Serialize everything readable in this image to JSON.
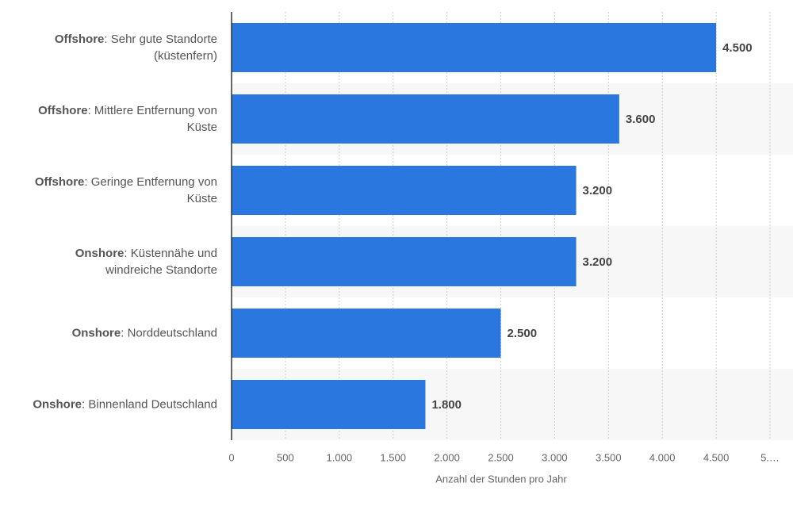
{
  "chart_data": {
    "type": "barh",
    "categories": [
      "Offshore: Sehr gute Standorte (küstenfern)",
      "Offshore: Mittlere Entfernung von Küste",
      "Offshore: Geringe Entfernung von Küste",
      "Onshore: Küstennähe und windreiche Standorte",
      "Onshore: Norddeutschland",
      "Onshore: Binnenland Deutschland"
    ],
    "values": [
      4500,
      3600,
      3200,
      3200,
      2500,
      1800
    ],
    "value_labels": [
      "4.500",
      "3.600",
      "3.200",
      "3.200",
      "2.500",
      "1.800"
    ],
    "color": "#2a77e0",
    "xlim": [
      0,
      5000
    ],
    "xticks": [
      0,
      500,
      {
        "value": 1000,
        "label": "1.000"
      },
      {
        "value": 1500,
        "label": "1.500"
      },
      {
        "value": 2000,
        "label": "2.000"
      },
      {
        "value": 2500,
        "label": "2.500"
      },
      {
        "value": 3000,
        "label": "3.000"
      },
      {
        "value": 3500,
        "label": "3.500"
      },
      {
        "value": 4000,
        "label": "4.000"
      },
      {
        "value": 4500,
        "label": "4.500"
      },
      {
        "value": 5000,
        "label": "5.…"
      }
    ],
    "xlabel": "Anzahl der Stunden pro Jahr",
    "grid": true
  }
}
